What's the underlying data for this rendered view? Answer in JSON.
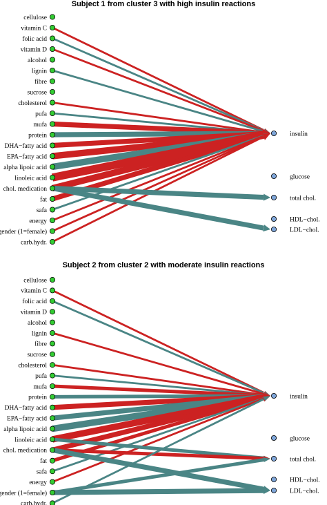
{
  "colors": {
    "positive": "#cc2222",
    "negative": "#4a8585",
    "node_left": "#33cc33",
    "node_right": "#7fa6d9"
  },
  "panels": [
    {
      "title": "Subject 1 from cluster 3 with high insulin reactions",
      "left_nodes": [
        "cellulose",
        "vitamin C",
        "folic acid",
        "vitamin D",
        "alcohol",
        "lignin",
        "fibre",
        "sucrose",
        "cholesterol",
        "pufa",
        "mufa",
        "protein",
        "DHA−fatty acid",
        "EPA−fatty acid",
        "alpha lipoic acid",
        "linoleic acid",
        "chol. medication",
        "fat",
        "safa",
        "energy",
        "gender (1=female)",
        "carb.hydr."
      ],
      "right_nodes": [
        "insulin",
        "glucose",
        "total chol.",
        "HDL−chol.",
        "LDL−chol."
      ],
      "edges": [
        {
          "from": "vitamin C",
          "to": "insulin",
          "sign": "positive",
          "weight": 1
        },
        {
          "from": "folic acid",
          "to": "insulin",
          "sign": "negative",
          "weight": 1
        },
        {
          "from": "vitamin D",
          "to": "insulin",
          "sign": "positive",
          "weight": 1
        },
        {
          "from": "lignin",
          "to": "insulin",
          "sign": "negative",
          "weight": 1
        },
        {
          "from": "cholesterol",
          "to": "insulin",
          "sign": "positive",
          "weight": 1
        },
        {
          "from": "pufa",
          "to": "insulin",
          "sign": "negative",
          "weight": 1
        },
        {
          "from": "mufa",
          "to": "insulin",
          "sign": "positive",
          "weight": 3
        },
        {
          "from": "protein",
          "to": "insulin",
          "sign": "negative",
          "weight": 3
        },
        {
          "from": "DHA−fatty acid",
          "to": "insulin",
          "sign": "positive",
          "weight": 3
        },
        {
          "from": "EPA−fatty acid",
          "to": "insulin",
          "sign": "positive",
          "weight": 4
        },
        {
          "from": "alpha lipoic acid",
          "to": "insulin",
          "sign": "negative",
          "weight": 4
        },
        {
          "from": "linoleic acid",
          "to": "insulin",
          "sign": "positive",
          "weight": 5
        },
        {
          "from": "chol. medication",
          "to": "insulin",
          "sign": "positive",
          "weight": 4
        },
        {
          "from": "fat",
          "to": "insulin",
          "sign": "positive",
          "weight": 3
        },
        {
          "from": "safa",
          "to": "insulin",
          "sign": "negative",
          "weight": 1
        },
        {
          "from": "energy",
          "to": "insulin",
          "sign": "positive",
          "weight": 1
        },
        {
          "from": "gender (1=female)",
          "to": "insulin",
          "sign": "positive",
          "weight": 1
        },
        {
          "from": "carb.hydr.",
          "to": "insulin",
          "sign": "positive",
          "weight": 1
        },
        {
          "from": "chol. medication",
          "to": "total chol.",
          "sign": "negative",
          "weight": 3
        },
        {
          "from": "chol. medication",
          "to": "LDL−chol.",
          "sign": "negative",
          "weight": 3
        }
      ]
    },
    {
      "title": "Subject 2 from cluster 2 with moderate insulin reactions",
      "left_nodes": [
        "cellulose",
        "vitamin C",
        "folic acid",
        "vitamin D",
        "alcohol",
        "lignin",
        "fibre",
        "sucrose",
        "cholesterol",
        "pufa",
        "mufa",
        "protein",
        "DHA−fatty acid",
        "EPA−fatty acid",
        "alpha lipoic acid",
        "linoleic acid",
        "chol. medication",
        "fat",
        "safa",
        "energy",
        "gender (1=female)",
        "carb.hydr."
      ],
      "right_nodes": [
        "insulin",
        "glucose",
        "total chol.",
        "HDL−chol.",
        "LDL−chol."
      ],
      "edges": [
        {
          "from": "vitamin C",
          "to": "insulin",
          "sign": "positive",
          "weight": 1
        },
        {
          "from": "folic acid",
          "to": "insulin",
          "sign": "negative",
          "weight": 1
        },
        {
          "from": "lignin",
          "to": "insulin",
          "sign": "positive",
          "weight": 1
        },
        {
          "from": "cholesterol",
          "to": "insulin",
          "sign": "positive",
          "weight": 1
        },
        {
          "from": "pufa",
          "to": "insulin",
          "sign": "negative",
          "weight": 1
        },
        {
          "from": "mufa",
          "to": "insulin",
          "sign": "positive",
          "weight": 2
        },
        {
          "from": "protein",
          "to": "insulin",
          "sign": "negative",
          "weight": 2
        },
        {
          "from": "DHA−fatty acid",
          "to": "insulin",
          "sign": "positive",
          "weight": 3
        },
        {
          "from": "EPA−fatty acid",
          "to": "insulin",
          "sign": "negative",
          "weight": 3
        },
        {
          "from": "alpha lipoic acid",
          "to": "insulin",
          "sign": "negative",
          "weight": 4
        },
        {
          "from": "linoleic acid",
          "to": "insulin",
          "sign": "positive",
          "weight": 4
        },
        {
          "from": "chol. medication",
          "to": "insulin",
          "sign": "positive",
          "weight": 3
        },
        {
          "from": "fat",
          "to": "insulin",
          "sign": "positive",
          "weight": 2
        },
        {
          "from": "safa",
          "to": "insulin",
          "sign": "negative",
          "weight": 1
        },
        {
          "from": "energy",
          "to": "insulin",
          "sign": "positive",
          "weight": 1
        },
        {
          "from": "linoleic acid",
          "to": "total chol.",
          "sign": "negative",
          "weight": 2
        },
        {
          "from": "chol. medication",
          "to": "total chol.",
          "sign": "positive",
          "weight": 2
        },
        {
          "from": "chol. medication",
          "to": "LDL−chol.",
          "sign": "negative",
          "weight": 3
        },
        {
          "from": "gender (1=female)",
          "to": "total chol.",
          "sign": "negative",
          "weight": 2
        },
        {
          "from": "gender (1=female)",
          "to": "LDL−chol.",
          "sign": "negative",
          "weight": 3
        },
        {
          "from": "carb.hydr.",
          "to": "insulin",
          "sign": "negative",
          "weight": 1
        }
      ]
    }
  ]
}
